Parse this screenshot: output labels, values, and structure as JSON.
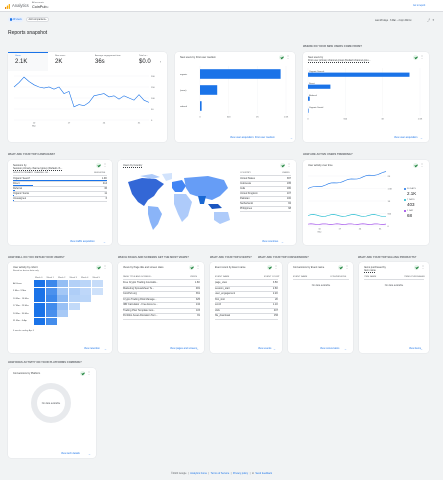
{
  "header": {
    "product": "Analytics",
    "account": "All accounts",
    "property": "CoinPub",
    "old_link": "Go to report"
  },
  "filters": {
    "all_users": "All Users",
    "add_comparison": "Add comparison",
    "date_range": "Last 28 days · 6 Mar – 2 Apr 2024"
  },
  "page_title": "Reports snapshot",
  "overview": {
    "metrics": [
      {
        "label": "Users",
        "value": "2.1K"
      },
      {
        "label": "New users",
        "value": "2K"
      },
      {
        "label": "Average engagement time",
        "value": "36s"
      },
      {
        "label": "Total re...",
        "value": "$0.0"
      }
    ],
    "y_ticks": [
      "200",
      "150",
      "100",
      "50",
      "0"
    ],
    "x_ticks": [
      "10",
      "17",
      "24",
      "31"
    ],
    "x_month": "Mar",
    "series": [
      150,
      170,
      195,
      175,
      160,
      150,
      145,
      150,
      140,
      150,
      120,
      130,
      60,
      70,
      65,
      80,
      110,
      115,
      120,
      105,
      110,
      95,
      110,
      100,
      90,
      115,
      90,
      80
    ]
  },
  "new_users_medium": {
    "title": "New users by First user medium",
    "categories": [
      "organic",
      "(none)",
      "referral"
    ],
    "values": [
      1500,
      320,
      30
    ],
    "x_ticks": [
      "0",
      "500",
      "1K",
      "1.5K"
    ],
    "link": "View user acquisition: First user medium"
  },
  "acquisition": {
    "section": "Where do your new users come from?",
    "title": "New users by",
    "subtitle": "First user primary channel group (Default channel grou...",
    "categories": [
      "Organic Search",
      "Direct",
      "Referral",
      "Organic Social"
    ],
    "values": [
      1450,
      320,
      25,
      8
    ],
    "x_ticks": [
      "0",
      "500",
      "1K",
      "1.5K"
    ],
    "link": "View user acquisition"
  },
  "campaigns": {
    "section": "What are your top campaigns?",
    "title": "Sessions by",
    "subtitle": "Session primary channel group (Default ch...",
    "col1": "SESSION PRIMARY CHANNEL GR...",
    "col2": "SESSIONS",
    "rows": [
      {
        "name": "Organic Search",
        "value": "1.9K"
      },
      {
        "name": "Direct",
        "value": "414"
      },
      {
        "name": "Referral",
        "value": "36"
      },
      {
        "name": "Organic Social",
        "value": "11"
      },
      {
        "name": "Unassigned",
        "value": "6"
      }
    ],
    "link": "View traffic acquisition"
  },
  "countries": {
    "title": "Users by Country",
    "col1": "COUNTRY",
    "col2": "USERS",
    "rows": [
      {
        "name": "United States",
        "value": "397"
      },
      {
        "name": "Indonesia",
        "value": "195"
      },
      {
        "name": "India",
        "value": "180"
      },
      {
        "name": "United Kingdom",
        "value": "107"
      },
      {
        "name": "Pakistan",
        "value": "100"
      },
      {
        "name": "Netherlands",
        "value": "84"
      },
      {
        "name": "Philippines",
        "value": "68"
      }
    ],
    "link": "View countries"
  },
  "active_users": {
    "section": "How are active users trending?",
    "title": "User activity over time",
    "legend": [
      {
        "label": "30 DAYS",
        "value": "2.1K",
        "color": "#1a73e8"
      },
      {
        "label": "7 DAYS",
        "value": "403",
        "color": "#12b5cb"
      },
      {
        "label": "1 DAY",
        "value": "68",
        "color": "#9334e6"
      }
    ],
    "x_ticks": [
      "10",
      "17",
      "24",
      "31"
    ],
    "x_month": "Mar",
    "y_ticks": [
      "2K",
      "1.5K",
      "1K",
      "500",
      "0"
    ]
  },
  "retention": {
    "section": "How well do you retain your users?",
    "title": "User activity by cohort",
    "subtitle": "Based on device data only",
    "weeks": [
      "Week 0",
      "Week 1",
      "Week 2",
      "Week 3",
      "Week 4",
      "Week 5"
    ],
    "rows": [
      {
        "label": "All Users",
        "cells": [
          100,
          4.2,
          1.9,
          1.1,
          0.9,
          0.6
        ]
      },
      {
        "label": "3 Mar - 9 Mar",
        "cells": [
          100,
          3.8,
          1.5,
          1.2,
          0.8,
          0.4
        ]
      },
      {
        "label": "10 Mar - 16 Mar",
        "cells": [
          100,
          4.5,
          2.1,
          1.0,
          0.9
        ]
      },
      {
        "label": "17 Mar - 23 Mar",
        "cells": [
          100,
          4.1,
          1.8,
          0.7
        ]
      },
      {
        "label": "24 Mar - 30 Mar",
        "cells": [
          100,
          3.9,
          1.4
        ]
      },
      {
        "label": "31 Mar - 6 Apr",
        "cells": [
          100,
          4.0
        ]
      }
    ],
    "footer": "6 weeks ending Apr 6",
    "link": "View retention"
  },
  "pages": {
    "section": "Which pages and screens get the most views?",
    "title": "Views by Page title and screen class",
    "col1": "PAGE TITLE AND SCREEN...",
    "col2": "VIEWS",
    "rows": [
      {
        "name": "Free Crypto Trading Journal&...",
        "value": "1.6K"
      },
      {
        "name": "Marketing Spreadsheet Te...",
        "value": "481"
      },
      {
        "name": "CoinPub.org",
        "value": "361"
      },
      {
        "name": "Crypto Trading Risk Manage...",
        "value": "325"
      },
      {
        "name": "IRR Calculator - Free Excel a...",
        "value": "134"
      },
      {
        "name": "Trading Plan Template Goo...",
        "value": "115"
      },
      {
        "name": "Portfolio Asset Allocation Tem...",
        "value": "81"
      }
    ],
    "link": "View pages and screens"
  },
  "events": {
    "section": "What are your top events?",
    "title": "Event count by Event name",
    "col1": "EVENT NAME",
    "col2": "EVENT COUNT",
    "rows": [
      {
        "name": "page_view",
        "value": "3.5K"
      },
      {
        "name": "session_start",
        "value": "2.6K"
      },
      {
        "name": "user_engagement",
        "value": "2.2K"
      },
      {
        "name": "first_visit",
        "value": "2K"
      },
      {
        "name": "scroll",
        "value": "1.1K"
      },
      {
        "name": "click",
        "value": "407"
      },
      {
        "name": "file_download",
        "value": "156"
      }
    ],
    "link": "View events"
  },
  "conversions": {
    "section": "What are your top conversions?",
    "title": "Conversions by Event name",
    "col1": "EVENT NAME",
    "col2": "CONVERSIONS",
    "empty": "No data available",
    "link": "View conversions"
  },
  "products": {
    "section": "What are your top selling products?",
    "title": "Items purchased by",
    "subtitle": "Item name",
    "col1": "ITEM NAME",
    "col2": "ITEMS PURCHASED",
    "empty": "No data available",
    "link": "View items"
  },
  "platform": {
    "section": "How does activity on your platforms compare?",
    "title": "Conversions by Platform",
    "empty": "No data available",
    "link": "View tech details"
  },
  "footer": {
    "copyright": "©2024 Google",
    "links": [
      "Analytics home",
      "Terms of Service",
      "Privacy policy"
    ],
    "feedback": "Send feedback"
  },
  "colors": {
    "accent": "#1a73e8",
    "success": "#188038"
  }
}
